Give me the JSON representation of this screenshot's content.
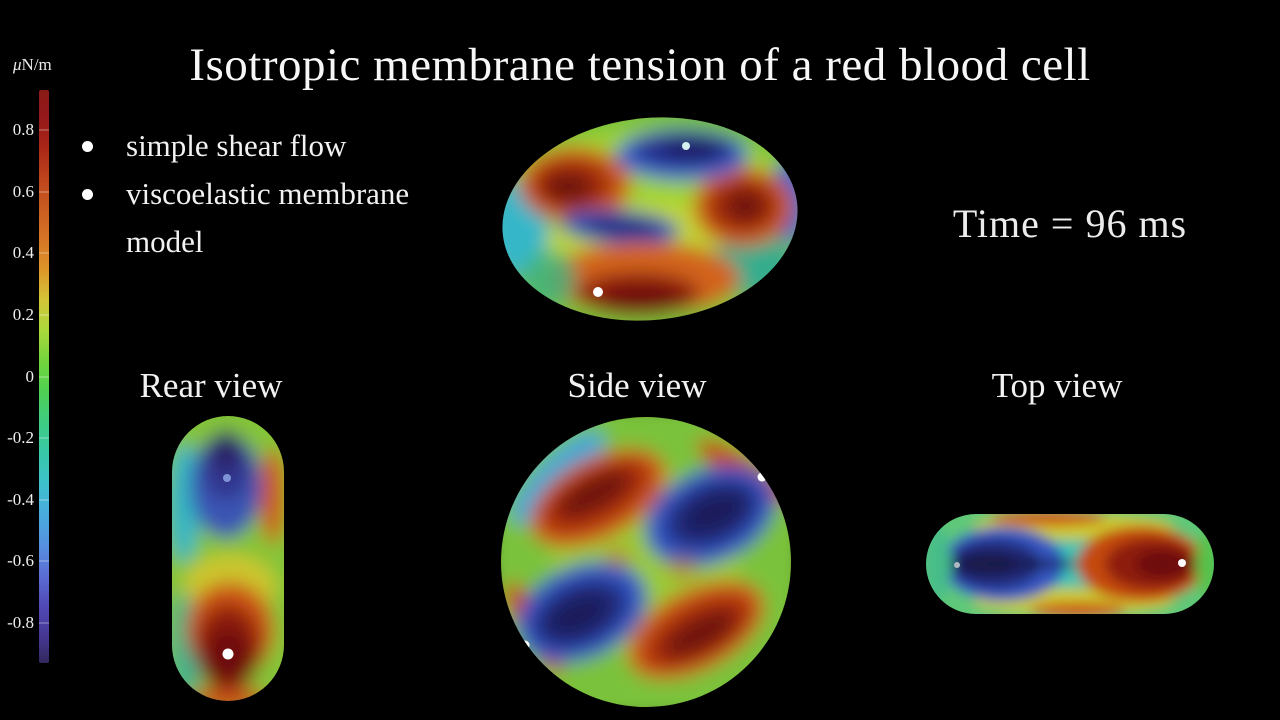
{
  "title": "Isotropic membrane tension of a red blood cell",
  "notes": {
    "items": [
      "simple shear flow",
      "viscoelastic membrane model"
    ]
  },
  "time_display": "Time = 96 ms",
  "colorbar": {
    "unit": "μN/m",
    "range": [
      -0.93,
      0.93
    ],
    "ticks": [
      {
        "label": "0.8",
        "value": 0.8
      },
      {
        "label": "0.6",
        "value": 0.6
      },
      {
        "label": "0.4",
        "value": 0.4
      },
      {
        "label": "0.2",
        "value": 0.2
      },
      {
        "label": "0",
        "value": 0.0
      },
      {
        "label": "-0.2",
        "value": -0.2
      },
      {
        "label": "-0.4",
        "value": -0.4
      },
      {
        "label": "-0.6",
        "value": -0.6
      },
      {
        "label": "-0.8",
        "value": -0.8
      }
    ],
    "stops": [
      {
        "value": 0.93,
        "color": "#8a1a15"
      },
      {
        "value": 0.85,
        "color": "#93181a"
      },
      {
        "value": 0.75,
        "color": "#a82417"
      },
      {
        "value": 0.65,
        "color": "#bc421c"
      },
      {
        "value": 0.55,
        "color": "#c85a20"
      },
      {
        "value": 0.45,
        "color": "#d67426"
      },
      {
        "value": 0.35,
        "color": "#dc9428"
      },
      {
        "value": 0.25,
        "color": "#d4c438"
      },
      {
        "value": 0.15,
        "color": "#aad83c"
      },
      {
        "value": 0.05,
        "color": "#74d43c"
      },
      {
        "value": -0.05,
        "color": "#4ed054"
      },
      {
        "value": -0.15,
        "color": "#3ecc84"
      },
      {
        "value": -0.25,
        "color": "#38c8a8"
      },
      {
        "value": -0.35,
        "color": "#3ec0cc"
      },
      {
        "value": -0.45,
        "color": "#4aaade"
      },
      {
        "value": -0.55,
        "color": "#5690e0"
      },
      {
        "value": -0.65,
        "color": "#5a6cd4"
      },
      {
        "value": -0.75,
        "color": "#5148b4"
      },
      {
        "value": -0.85,
        "color": "#443690"
      },
      {
        "value": -0.93,
        "color": "#32285c"
      }
    ]
  },
  "views": {
    "rear": {
      "label": "Rear view"
    },
    "side": {
      "label": "Side view"
    },
    "top": {
      "label": "Top view"
    }
  },
  "chart_data": {
    "type": "heatmap",
    "title": "Isotropic membrane tension of a red blood cell",
    "annotations": [
      "simple shear flow",
      "viscoelastic membrane model",
      "Time = 96 ms"
    ],
    "field": "isotropic membrane tension",
    "colorbar_label": "μN/m",
    "colorbar_ticks": [
      0.8,
      0.6,
      0.4,
      0.2,
      0,
      -0.2,
      -0.4,
      -0.6,
      -0.8
    ],
    "colorbar_range": [
      -0.93,
      0.93
    ],
    "colormap_order_top_to_bottom": [
      "dark red",
      "red",
      "orange",
      "yellow",
      "green",
      "teal",
      "cyan",
      "blue",
      "indigo",
      "dark violet"
    ],
    "time_ms": 96,
    "views": [
      {
        "name": "perspective",
        "label": "",
        "description": "tilted oblate cell; tension extremes: dark-red patches upper-left/right/bottom (high positive), navy patches top and mid dimple (negative), green-yellow background"
      },
      {
        "name": "rear",
        "label": "Rear view",
        "description": "vertical capsule; negative (blue/navy) tension upper half, strong positive (dark red) lower half"
      },
      {
        "name": "side",
        "label": "Side view",
        "description": "circular outline; two dark-red lobes (upper-left, lower-right) and two navy lobes (upper-right, lower-left) on green background"
      },
      {
        "name": "top",
        "label": "Top view",
        "description": "horizontal capsule; navy negative lobe on left end, dark-red positive lobe on right end, cyan-green middle with yellow/orange edge bands"
      }
    ],
    "tracer_dots": "small white/grey marker dots on membrane in each view"
  }
}
